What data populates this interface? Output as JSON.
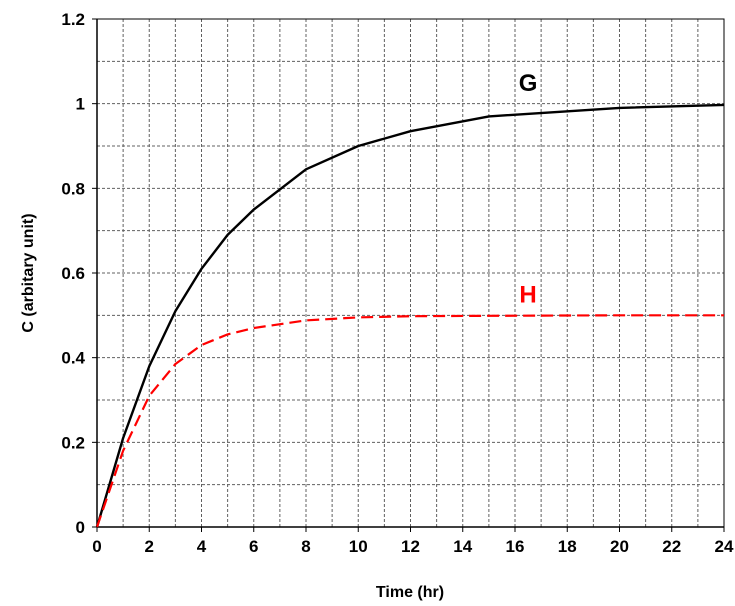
{
  "chart_data": {
    "type": "line",
    "title": "",
    "xlabel": "Time (hr)",
    "ylabel": "C (arbitary unit)",
    "xlim": [
      0,
      24
    ],
    "ylim": [
      0,
      1.2
    ],
    "x_ticks": [
      "0",
      "2",
      "4",
      "6",
      "8",
      "10",
      "12",
      "14",
      "16",
      "18",
      "20",
      "22",
      "24"
    ],
    "y_ticks": [
      "0",
      "0.2",
      "0.4",
      "0.6",
      "0.8",
      "1",
      "1.2"
    ],
    "grid": true,
    "grid_style": "dashed",
    "legend": "none",
    "series": [
      {
        "name": "G",
        "color": "#000000",
        "style": "solid",
        "x": [
          0,
          1,
          2,
          3,
          4,
          5,
          6,
          8,
          10,
          12,
          15,
          20,
          24
        ],
        "y": [
          0,
          0.21,
          0.38,
          0.51,
          0.61,
          0.69,
          0.75,
          0.845,
          0.9,
          0.935,
          0.97,
          0.99,
          0.997
        ]
      },
      {
        "name": "H",
        "color": "#ff0000",
        "style": "dashed",
        "x": [
          0,
          1,
          2,
          3,
          4,
          5,
          6,
          8,
          10,
          12,
          15,
          20,
          24
        ],
        "y": [
          0,
          0.18,
          0.31,
          0.385,
          0.43,
          0.455,
          0.47,
          0.488,
          0.495,
          0.498,
          0.499,
          0.5,
          0.5
        ]
      }
    ],
    "annotations": [
      {
        "text": "G",
        "x": 16.5,
        "y": 1.03,
        "color": "#000000"
      },
      {
        "text": "H",
        "x": 16.5,
        "y": 0.53,
        "color": "#ff0000"
      }
    ]
  }
}
